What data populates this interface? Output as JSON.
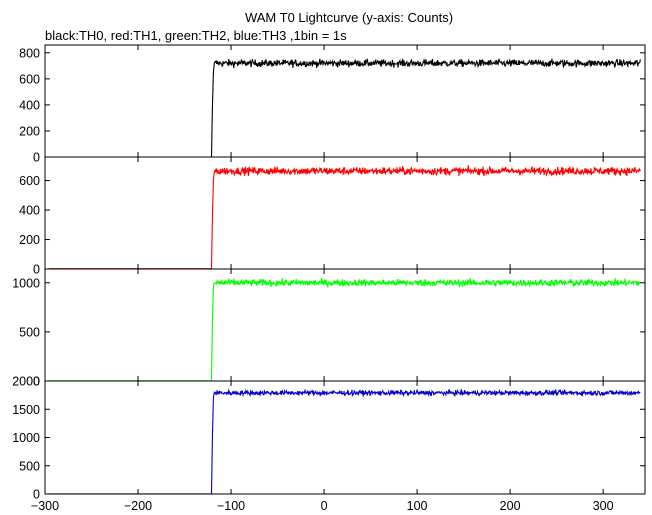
{
  "chart_data": {
    "type": "line",
    "title": "WAM T0 Lightcurve (y-axis: Counts)",
    "subtitle": "black:TH0, red:TH1, green:TH2, blue:TH3 ,1bin = 1s",
    "xlabel": "",
    "xlim": [
      -300,
      345
    ],
    "x_ticks": [
      -300,
      -200,
      -100,
      0,
      100,
      200,
      300
    ],
    "x_tick_labels": [
      "−300",
      "−200",
      "−100",
      "0",
      "100",
      "200",
      "300"
    ],
    "grid": false,
    "panels": [
      {
        "name": "TH0",
        "color": "#000000",
        "ylim": [
          0,
          860
        ],
        "y_ticks": [
          0,
          200,
          400,
          600,
          800
        ],
        "y_tick_labels": [
          "0",
          "200",
          "400",
          "600",
          "800"
        ],
        "onset_x": -120,
        "pre_level": 0,
        "rise_points": [
          [
            -121,
            0
          ],
          [
            -120,
            380
          ],
          [
            -119,
            650
          ],
          [
            -118,
            720
          ]
        ],
        "post_level": 720,
        "noise_amplitude": 25,
        "x_end": 340
      },
      {
        "name": "TH1",
        "color": "#ff0000",
        "ylim": [
          0,
          760
        ],
        "y_ticks": [
          0,
          200,
          400,
          600
        ],
        "y_tick_labels": [
          "0",
          "200",
          "400",
          "600"
        ],
        "onset_x": -120,
        "pre_level": 2,
        "rise_points": [
          [
            -121,
            2
          ],
          [
            -120,
            350
          ],
          [
            -119,
            600
          ],
          [
            -118,
            660
          ]
        ],
        "post_level": 665,
        "noise_amplitude": 24,
        "x_end": 340
      },
      {
        "name": "TH2",
        "color": "#00ff00",
        "ylim": [
          0,
          1140
        ],
        "y_ticks": [
          0,
          500,
          1000
        ],
        "y_tick_labels": [
          "0",
          "500",
          "1000"
        ],
        "onset_x": -120,
        "pre_level": 2,
        "rise_points": [
          [
            -121,
            2
          ],
          [
            -120,
            600
          ],
          [
            -119,
            950
          ],
          [
            -118,
            1000
          ]
        ],
        "post_level": 1000,
        "noise_amplitude": 32,
        "x_end": 340
      },
      {
        "name": "TH3",
        "color": "#0000cc",
        "ylim": [
          0,
          2000
        ],
        "y_ticks": [
          0,
          500,
          1000,
          1500,
          2000
        ],
        "y_tick_labels": [
          "0",
          "500",
          "1000",
          "1500",
          "2000"
        ],
        "onset_x": -120,
        "pre_level": 2,
        "rise_points": [
          [
            -121,
            2
          ],
          [
            -120,
            1000
          ],
          [
            -119,
            1700
          ],
          [
            -118,
            1800
          ]
        ],
        "post_level": 1790,
        "noise_amplitude": 40,
        "x_end": 340
      }
    ]
  }
}
